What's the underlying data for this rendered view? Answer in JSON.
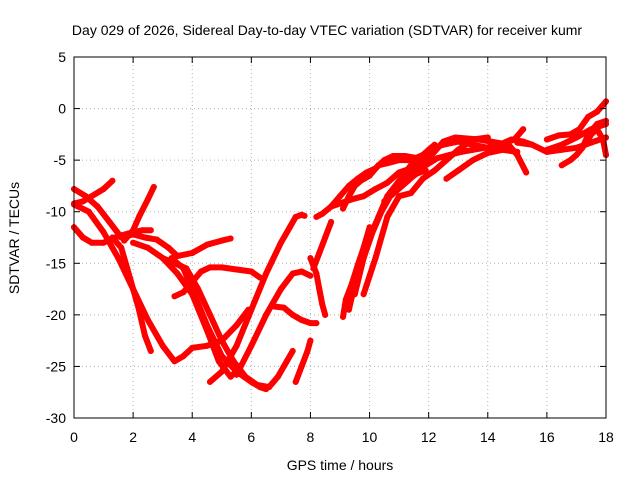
{
  "chart_data": {
    "type": "scatter",
    "title": "Day 029 of 2026, Sidereal Day-to-day VTEC variation (SDTVAR) for receiver kumr",
    "xlabel": "GPS time / hours",
    "ylabel": "SDTVAR / TECUs",
    "xlim": [
      0,
      18
    ],
    "ylim": [
      -30,
      5
    ],
    "xticks": [
      0,
      2,
      4,
      6,
      8,
      10,
      12,
      14,
      16,
      18
    ],
    "yticks": [
      -30,
      -25,
      -20,
      -15,
      -10,
      -5,
      0,
      5
    ],
    "grid": true,
    "marker_color": "#ff0000",
    "series": [
      {
        "x": [
          0.0,
          0.3,
          0.6,
          1.0,
          1.3
        ],
        "y": [
          -9.2,
          -9.0,
          -8.5,
          -7.8,
          -7.0
        ]
      },
      {
        "x": [
          0.0,
          0.4,
          0.8,
          1.2,
          1.6,
          2.0,
          2.4,
          2.8,
          3.2,
          3.5,
          4.0,
          4.5,
          5.0,
          5.3
        ],
        "y": [
          -7.8,
          -8.5,
          -9.5,
          -11.0,
          -12.5,
          -12.2,
          -12.5,
          -12.7,
          -13.5,
          -14.3,
          -14.0,
          -13.2,
          -12.8,
          -12.6
        ]
      },
      {
        "x": [
          0.0,
          0.3,
          0.6,
          1.0,
          1.3,
          1.6,
          2.0,
          2.3,
          2.6
        ],
        "y": [
          -11.5,
          -12.5,
          -13.0,
          -13.0,
          -12.6,
          -12.3,
          -12.0,
          -11.8,
          -11.8
        ]
      },
      {
        "x": [
          0.0,
          0.5,
          1.0,
          1.5,
          2.0,
          2.5,
          3.0,
          3.4,
          3.7,
          4.0,
          4.5,
          5.0,
          5.5,
          5.9
        ],
        "y": [
          -9.3,
          -10.0,
          -12.0,
          -14.5,
          -17.5,
          -20.5,
          -23.0,
          -24.5,
          -24.0,
          -23.2,
          -23.0,
          -22.5,
          -21.0,
          -19.5
        ]
      },
      {
        "x": [
          1.3,
          1.6,
          1.9,
          2.2,
          2.4,
          2.6
        ],
        "y": [
          -12.5,
          -13.5,
          -16.5,
          -19.5,
          -22.0,
          -23.5
        ]
      },
      {
        "x": [
          1.7,
          2.0,
          2.2,
          2.5,
          2.7
        ],
        "y": [
          -12.8,
          -11.8,
          -10.5,
          -8.8,
          -7.6
        ]
      },
      {
        "x": [
          2.0,
          2.5,
          3.0,
          3.5,
          4.0,
          4.5,
          4.9,
          5.3,
          5.6
        ],
        "y": [
          -13.0,
          -13.5,
          -14.5,
          -16.0,
          -18.0,
          -21.5,
          -24.5,
          -26.0,
          -25.2
        ]
      },
      {
        "x": [
          3.3,
          3.7,
          4.0,
          4.5,
          5.0,
          5.5,
          6.0,
          6.3,
          6.5
        ],
        "y": [
          -14.5,
          -15.5,
          -17.5,
          -21.0,
          -24.0,
          -25.5,
          -26.5,
          -27.0,
          -27.2
        ]
      },
      {
        "x": [
          3.0,
          3.4,
          3.8,
          4.2,
          4.6,
          5.0,
          5.4,
          5.8,
          6.2,
          6.6,
          6.9,
          7.2,
          7.4
        ],
        "y": [
          -14.5,
          -15.0,
          -15.5,
          -17.5,
          -20.0,
          -22.5,
          -24.5,
          -26.0,
          -26.8,
          -27.0,
          -26.0,
          -24.5,
          -23.5
        ]
      },
      {
        "x": [
          3.4,
          3.7,
          4.0,
          4.3,
          4.6,
          5.0,
          5.5,
          6.0,
          6.3
        ],
        "y": [
          -18.2,
          -17.8,
          -16.8,
          -15.8,
          -15.4,
          -15.4,
          -15.6,
          -15.8,
          -16.4
        ]
      },
      {
        "x": [
          4.6,
          5.0,
          5.5,
          6.0,
          6.5,
          7.0,
          7.3,
          7.5,
          7.7,
          7.8
        ],
        "y": [
          -26.5,
          -25.5,
          -23.0,
          -19.5,
          -16.0,
          -13.0,
          -11.5,
          -10.5,
          -10.3,
          -10.4
        ]
      },
      {
        "x": [
          5.5,
          6.0,
          6.5,
          7.0,
          7.4,
          7.7,
          8.0
        ],
        "y": [
          -25.8,
          -23.0,
          -20.0,
          -17.5,
          -16.0,
          -15.8,
          -16.2
        ]
      },
      {
        "x": [
          6.8,
          7.1,
          7.4,
          7.7,
          8.0,
          8.2
        ],
        "y": [
          -19.2,
          -19.3,
          -20.0,
          -20.5,
          -20.8,
          -20.8
        ]
      },
      {
        "x": [
          7.5,
          7.7,
          7.9,
          8.0
        ],
        "y": [
          -26.5,
          -25.0,
          -23.5,
          -22.5
        ]
      },
      {
        "x": [
          8.0,
          8.2,
          8.3,
          8.4,
          8.5
        ],
        "y": [
          -14.5,
          -16.0,
          -17.5,
          -19.0,
          -20.0
        ]
      },
      {
        "x": [
          8.1,
          8.3,
          8.5,
          8.7
        ],
        "y": [
          -15.5,
          -14.0,
          -12.5,
          -11.0
        ]
      },
      {
        "x": [
          8.2,
          8.4,
          8.7,
          9.0,
          9.4,
          9.8,
          10.2,
          10.6,
          11.0,
          11.4,
          11.8
        ],
        "y": [
          -10.5,
          -10.2,
          -9.5,
          -9.2,
          -8.8,
          -8.5,
          -7.8,
          -7.2,
          -6.2,
          -5.8,
          -5.5
        ]
      },
      {
        "x": [
          8.7,
          9.0,
          9.3,
          9.6,
          9.9,
          10.2,
          10.5,
          10.8,
          11.2,
          11.6
        ],
        "y": [
          -9.5,
          -8.5,
          -7.5,
          -6.8,
          -6.2,
          -5.8,
          -5.0,
          -4.6,
          -4.6,
          -4.8
        ]
      },
      {
        "x": [
          9.1,
          9.3,
          9.5,
          9.7,
          10.0,
          10.3,
          10.6,
          11.0,
          11.4,
          11.8,
          12.2
        ],
        "y": [
          -9.7,
          -8.5,
          -7.5,
          -7.0,
          -6.5,
          -5.5,
          -5.3,
          -5.0,
          -5.0,
          -4.5,
          -3.5
        ]
      },
      {
        "x": [
          9.1,
          9.2,
          9.4,
          9.6,
          9.8,
          10.0
        ],
        "y": [
          -20.2,
          -18.5,
          -17.0,
          -15.2,
          -13.5,
          -11.5
        ]
      },
      {
        "x": [
          9.3,
          9.5,
          9.7,
          10.0,
          10.3,
          10.6,
          11.0,
          11.4,
          11.8
        ],
        "y": [
          -19.5,
          -17.0,
          -14.5,
          -12.5,
          -10.5,
          -8.5,
          -7.0,
          -5.5,
          -4.5
        ]
      },
      {
        "x": [
          9.5,
          9.8,
          10.1,
          10.4,
          10.7,
          11.0,
          11.3,
          11.6,
          11.9
        ],
        "y": [
          -18.0,
          -14.5,
          -12.0,
          -10.0,
          -8.5,
          -7.5,
          -6.8,
          -6.3,
          -6.0
        ]
      },
      {
        "x": [
          9.8,
          10.2,
          10.6,
          11.0,
          11.4,
          11.8,
          12.2,
          12.6,
          13.0,
          13.5,
          14.0
        ],
        "y": [
          -18.0,
          -14.5,
          -10.5,
          -8.5,
          -8.2,
          -6.8,
          -6.0,
          -5.0,
          -4.0,
          -3.0,
          -2.8
        ]
      },
      {
        "x": [
          10.5,
          10.9,
          11.3,
          11.7,
          12.1,
          12.5,
          12.9,
          13.3,
          13.7,
          14.1,
          14.5,
          14.9,
          15.2
        ],
        "y": [
          -9.0,
          -8.0,
          -7.0,
          -6.0,
          -4.5,
          -3.2,
          -2.8,
          -2.9,
          -3.0,
          -3.2,
          -3.4,
          -3.0,
          -2.0
        ]
      },
      {
        "x": [
          11.0,
          11.5,
          12.0,
          12.5,
          13.0,
          13.5,
          14.0,
          14.4,
          14.8,
          15.2,
          15.5
        ],
        "y": [
          -7.2,
          -5.8,
          -4.0,
          -3.5,
          -3.2,
          -3.5,
          -3.8,
          -3.5,
          -3.0,
          -3.2,
          -3.5
        ]
      },
      {
        "x": [
          11.5,
          11.9,
          12.3,
          12.7,
          13.1,
          13.5,
          13.9,
          14.3,
          14.7,
          15.0,
          15.3
        ],
        "y": [
          -6.5,
          -5.5,
          -4.8,
          -4.5,
          -4.2,
          -4.0,
          -3.8,
          -3.6,
          -3.5,
          -4.5,
          -6.2
        ]
      },
      {
        "x": [
          12.6,
          13.0,
          13.5,
          14.0,
          14.5,
          15.0
        ],
        "y": [
          -6.8,
          -6.0,
          -5.0,
          -4.3,
          -4.0,
          -4.2
        ]
      },
      {
        "x": [
          15.0,
          15.5,
          16.0,
          16.5,
          17.0,
          17.5,
          18.0
        ],
        "y": [
          -3.3,
          -3.5,
          -4.2,
          -4.0,
          -3.8,
          -3.3,
          -2.8
        ]
      },
      {
        "x": [
          16.0,
          16.5,
          17.0,
          17.5,
          18.0
        ],
        "y": [
          -4.0,
          -3.5,
          -2.8,
          -2.0,
          -1.5
        ]
      },
      {
        "x": [
          16.0,
          16.4,
          16.8,
          17.1,
          17.4,
          17.7,
          18.0
        ],
        "y": [
          -3.0,
          -2.6,
          -2.5,
          -2.0,
          -0.8,
          -0.3,
          0.7
        ]
      },
      {
        "x": [
          16.5,
          16.8,
          17.0,
          17.2,
          17.4,
          17.7,
          18.0
        ],
        "y": [
          -5.5,
          -5.0,
          -4.5,
          -3.8,
          -2.5,
          -1.5,
          -1.2
        ]
      },
      {
        "x": [
          17.3,
          17.5,
          17.7,
          17.9,
          18.0
        ],
        "y": [
          -3.5,
          -2.5,
          -2.0,
          -3.0,
          -4.5
        ]
      }
    ]
  }
}
